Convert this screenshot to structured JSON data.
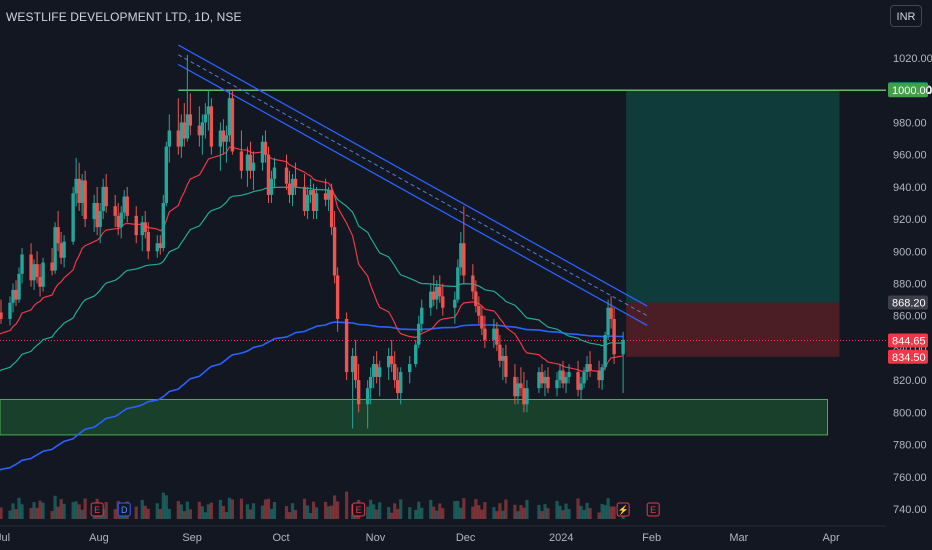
{
  "header": {
    "title": "WESTLIFE DEVELOPMENT LTD, 1D, NSE",
    "currency": "INR"
  },
  "colors": {
    "bg": "#131722",
    "up": "#26a69a",
    "down": "#ef5350",
    "ema_fast": "#f23645",
    "ema_mid": "#22ab94",
    "ema_slow": "#2962ff",
    "channel": "#2962ff",
    "resistance": "#4caf50",
    "target_zone": "#0f3b3a",
    "stop_zone": "#4a1e24",
    "support_zone": "#18402b"
  },
  "chart_data": {
    "type": "candlestick",
    "title": "WESTLIFE DEVELOPMENT LTD, 1D, NSE",
    "y_axis": {
      "min": 730,
      "max": 1030,
      "ticks": [
        "1020.00",
        "1000.00",
        "980.00",
        "960.00",
        "940.00",
        "920.00",
        "900.00",
        "880.00",
        "860.00",
        "840.00",
        "820.00",
        "800.00",
        "780.00",
        "760.00",
        "740.00"
      ]
    },
    "x_axis": {
      "ticks": [
        "Jul",
        "Aug",
        "Sep",
        "Oct",
        "Nov",
        "Dec",
        "2024",
        "Feb",
        "Mar",
        "Apr"
      ]
    },
    "price_labels": [
      {
        "text": "1000.60",
        "value": 1000.6,
        "color": "#089981"
      },
      {
        "text": "1000.00",
        "value": 1000.0,
        "color": "#43a047"
      },
      {
        "text": "868.20",
        "value": 868.2,
        "color": "#3c3f4a"
      },
      {
        "text": "844.65",
        "value": 844.65,
        "color": "#f23645"
      },
      {
        "text": "834.50",
        "value": 834.5,
        "color": "#f23645"
      }
    ],
    "levels": {
      "resistance": 1000.0,
      "support_zone": [
        786,
        808
      ],
      "target_zone": [
        868.2,
        1000.0
      ],
      "stop_zone": [
        834.5,
        868.2
      ],
      "last_price": 844.65
    },
    "channel": {
      "start": [
        "2023-08-28",
        1022
      ],
      "end": [
        "2024-01-31",
        860
      ],
      "width": 12
    },
    "events": [
      {
        "label": "E",
        "date": "2023-08-01"
      },
      {
        "label": "D",
        "date": "2023-08-10"
      },
      {
        "label": "E",
        "date": "2023-10-27"
      },
      {
        "label": "E",
        "date": "2024-02-02"
      },
      {
        "label": "⚡",
        "date": "2024-01-23"
      }
    ],
    "candles": [
      [
        "2023-06-26",
        843,
        852,
        838,
        848
      ],
      [
        "2023-06-27",
        848,
        858,
        844,
        855
      ],
      [
        "2023-06-28",
        855,
        860,
        846,
        850
      ],
      [
        "2023-06-29",
        850,
        865,
        848,
        862
      ],
      [
        "2023-06-30",
        862,
        870,
        855,
        858
      ],
      [
        "2023-07-03",
        858,
        872,
        854,
        868
      ],
      [
        "2023-07-04",
        868,
        880,
        862,
        876
      ],
      [
        "2023-07-05",
        876,
        882,
        866,
        870
      ],
      [
        "2023-07-06",
        870,
        890,
        868,
        886
      ],
      [
        "2023-07-07",
        886,
        902,
        880,
        898
      ],
      [
        "2023-07-10",
        898,
        905,
        878,
        882
      ],
      [
        "2023-07-11",
        882,
        895,
        876,
        892
      ],
      [
        "2023-07-12",
        892,
        900,
        880,
        884
      ],
      [
        "2023-07-13",
        884,
        892,
        872,
        878
      ],
      [
        "2023-07-14",
        878,
        896,
        875,
        893
      ],
      [
        "2023-07-17",
        893,
        902,
        885,
        888
      ],
      [
        "2023-07-18",
        888,
        918,
        886,
        915
      ],
      [
        "2023-07-19",
        915,
        925,
        900,
        905
      ],
      [
        "2023-07-20",
        905,
        912,
        892,
        896
      ],
      [
        "2023-07-21",
        896,
        910,
        890,
        906
      ],
      [
        "2023-07-24",
        906,
        940,
        904,
        936
      ],
      [
        "2023-07-25",
        936,
        958,
        928,
        945
      ],
      [
        "2023-07-26",
        945,
        955,
        925,
        930
      ],
      [
        "2023-07-27",
        930,
        948,
        922,
        944
      ],
      [
        "2023-07-28",
        944,
        950,
        915,
        920
      ],
      [
        "2023-07-31",
        920,
        935,
        912,
        930
      ],
      [
        "2023-08-01",
        930,
        940,
        910,
        915
      ],
      [
        "2023-08-02",
        915,
        930,
        905,
        925
      ],
      [
        "2023-08-03",
        925,
        945,
        920,
        940
      ],
      [
        "2023-08-04",
        940,
        948,
        924,
        928
      ],
      [
        "2023-08-07",
        928,
        935,
        915,
        922
      ],
      [
        "2023-08-08",
        922,
        930,
        910,
        915
      ],
      [
        "2023-08-09",
        915,
        928,
        908,
        924
      ],
      [
        "2023-08-10",
        924,
        938,
        920,
        934
      ],
      [
        "2023-08-11",
        934,
        940,
        918,
        922
      ],
      [
        "2023-08-14",
        922,
        928,
        905,
        910
      ],
      [
        "2023-08-16",
        910,
        922,
        900,
        918
      ],
      [
        "2023-08-17",
        918,
        925,
        908,
        912
      ],
      [
        "2023-08-18",
        912,
        918,
        895,
        900
      ],
      [
        "2023-08-21",
        900,
        910,
        896,
        905
      ],
      [
        "2023-08-22",
        905,
        910,
        898,
        902
      ],
      [
        "2023-08-23",
        902,
        935,
        900,
        930
      ],
      [
        "2023-08-24",
        930,
        968,
        928,
        965
      ],
      [
        "2023-08-25",
        965,
        985,
        955,
        975
      ],
      [
        "2023-08-28",
        975,
        995,
        960,
        965
      ],
      [
        "2023-08-29",
        965,
        985,
        958,
        980
      ],
      [
        "2023-08-30",
        980,
        992,
        965,
        970
      ],
      [
        "2023-08-31",
        970,
        1022,
        968,
        985
      ],
      [
        "2023-09-01",
        985,
        998,
        972,
        978
      ],
      [
        "2023-09-04",
        978,
        990,
        965,
        972
      ],
      [
        "2023-09-05",
        972,
        985,
        960,
        980
      ],
      [
        "2023-09-06",
        980,
        992,
        970,
        985
      ],
      [
        "2023-09-07",
        985,
        1000,
        975,
        990
      ],
      [
        "2023-09-08",
        990,
        995,
        960,
        965
      ],
      [
        "2023-09-11",
        965,
        980,
        950,
        975
      ],
      [
        "2023-09-12",
        975,
        982,
        960,
        968
      ],
      [
        "2023-09-13",
        968,
        978,
        955,
        972
      ],
      [
        "2023-09-14",
        972,
        1000,
        968,
        995
      ],
      [
        "2023-09-15",
        995,
        1000,
        960,
        962
      ],
      [
        "2023-09-18",
        962,
        975,
        945,
        950
      ],
      [
        "2023-09-20",
        950,
        965,
        940,
        960
      ],
      [
        "2023-09-21",
        960,
        968,
        945,
        950
      ],
      [
        "2023-09-22",
        950,
        962,
        938,
        955
      ],
      [
        "2023-09-25",
        955,
        972,
        950,
        968
      ],
      [
        "2023-09-26",
        968,
        975,
        955,
        960
      ],
      [
        "2023-09-27",
        960,
        965,
        930,
        935
      ],
      [
        "2023-09-28",
        935,
        950,
        930,
        945
      ],
      [
        "2023-09-29",
        945,
        958,
        940,
        952
      ],
      [
        "2023-10-03",
        952,
        960,
        938,
        942
      ],
      [
        "2023-10-04",
        942,
        950,
        930,
        935
      ],
      [
        "2023-10-05",
        935,
        948,
        928,
        945
      ],
      [
        "2023-10-06",
        945,
        955,
        935,
        940
      ],
      [
        "2023-10-09",
        940,
        948,
        922,
        925
      ],
      [
        "2023-10-10",
        925,
        940,
        920,
        935
      ],
      [
        "2023-10-11",
        935,
        945,
        930,
        938
      ],
      [
        "2023-10-12",
        938,
        942,
        920,
        925
      ],
      [
        "2023-10-13",
        925,
        940,
        920,
        936
      ],
      [
        "2023-10-16",
        936,
        945,
        928,
        932
      ],
      [
        "2023-10-17",
        932,
        940,
        925,
        938
      ],
      [
        "2023-10-18",
        938,
        942,
        910,
        915
      ],
      [
        "2023-10-19",
        915,
        925,
        880,
        885
      ],
      [
        "2023-10-20",
        885,
        890,
        850,
        858
      ],
      [
        "2023-10-23",
        858,
        862,
        820,
        825
      ],
      [
        "2023-10-25",
        825,
        840,
        790,
        835
      ],
      [
        "2023-10-26",
        835,
        845,
        815,
        820
      ],
      [
        "2023-10-27",
        820,
        830,
        800,
        805
      ],
      [
        "2023-10-30",
        805,
        820,
        790,
        815
      ],
      [
        "2023-10-31",
        815,
        828,
        805,
        822
      ],
      [
        "2023-11-01",
        822,
        835,
        815,
        830
      ],
      [
        "2023-11-02",
        830,
        838,
        818,
        822
      ],
      [
        "2023-11-03",
        822,
        832,
        810,
        828
      ],
      [
        "2023-11-06",
        828,
        840,
        820,
        835
      ],
      [
        "2023-11-07",
        835,
        845,
        825,
        830
      ],
      [
        "2023-11-08",
        830,
        838,
        815,
        820
      ],
      [
        "2023-11-09",
        820,
        828,
        808,
        812
      ],
      [
        "2023-11-10",
        812,
        828,
        805,
        825
      ],
      [
        "2023-11-13",
        825,
        835,
        818,
        830
      ],
      [
        "2023-11-15",
        830,
        845,
        828,
        842
      ],
      [
        "2023-11-16",
        842,
        860,
        840,
        855
      ],
      [
        "2023-11-17",
        855,
        870,
        850,
        865
      ],
      [
        "2023-11-20",
        865,
        880,
        860,
        875
      ],
      [
        "2023-11-21",
        875,
        885,
        866,
        870
      ],
      [
        "2023-11-22",
        870,
        882,
        864,
        878
      ],
      [
        "2023-11-23",
        878,
        885,
        868,
        872
      ],
      [
        "2023-11-24",
        872,
        880,
        860,
        865
      ],
      [
        "2023-11-28",
        865,
        875,
        855,
        870
      ],
      [
        "2023-11-29",
        870,
        895,
        868,
        890
      ],
      [
        "2023-11-30",
        890,
        912,
        885,
        905
      ],
      [
        "2023-12-01",
        905,
        928,
        880,
        885
      ],
      [
        "2023-12-04",
        885,
        892,
        870,
        875
      ],
      [
        "2023-12-05",
        875,
        882,
        862,
        866
      ],
      [
        "2023-12-06",
        866,
        872,
        855,
        860
      ],
      [
        "2023-12-07",
        860,
        866,
        848,
        852
      ],
      [
        "2023-12-08",
        852,
        860,
        840,
        845
      ],
      [
        "2023-12-11",
        845,
        858,
        840,
        852
      ],
      [
        "2023-12-12",
        852,
        856,
        838,
        842
      ],
      [
        "2023-12-13",
        842,
        848,
        828,
        832
      ],
      [
        "2023-12-14",
        832,
        840,
        820,
        835
      ],
      [
        "2023-12-15",
        835,
        842,
        818,
        822
      ],
      [
        "2023-12-18",
        822,
        830,
        805,
        810
      ],
      [
        "2023-12-19",
        810,
        822,
        805,
        818
      ],
      [
        "2023-12-20",
        818,
        828,
        810,
        815
      ],
      [
        "2023-12-21",
        815,
        825,
        800,
        805
      ],
      [
        "2023-12-22",
        805,
        820,
        800,
        815
      ],
      [
        "2023-12-26",
        815,
        828,
        812,
        825
      ],
      [
        "2023-12-27",
        825,
        830,
        815,
        818
      ],
      [
        "2023-12-28",
        818,
        826,
        810,
        822
      ],
      [
        "2023-12-29",
        822,
        828,
        812,
        815
      ],
      [
        "2024-01-01",
        815,
        825,
        810,
        820
      ],
      [
        "2024-01-02",
        820,
        830,
        815,
        826
      ],
      [
        "2024-01-03",
        826,
        832,
        815,
        818
      ],
      [
        "2024-01-04",
        818,
        825,
        812,
        822
      ],
      [
        "2024-01-05",
        822,
        830,
        818,
        825
      ],
      [
        "2024-01-08",
        825,
        832,
        810,
        814
      ],
      [
        "2024-01-09",
        814,
        822,
        808,
        818
      ],
      [
        "2024-01-10",
        818,
        828,
        815,
        825
      ],
      [
        "2024-01-11",
        825,
        835,
        820,
        830
      ],
      [
        "2024-01-12",
        830,
        838,
        822,
        826
      ],
      [
        "2024-01-15",
        826,
        832,
        815,
        820
      ],
      [
        "2024-01-16",
        820,
        830,
        814,
        828
      ],
      [
        "2024-01-17",
        828,
        850,
        826,
        848
      ],
      [
        "2024-01-18",
        848,
        870,
        845,
        865
      ],
      [
        "2024-01-19",
        865,
        872,
        852,
        858
      ],
      [
        "2024-01-20",
        858,
        865,
        830,
        836
      ],
      [
        "2024-01-23",
        836,
        850,
        812,
        845
      ]
    ],
    "volume_max": 80
  }
}
